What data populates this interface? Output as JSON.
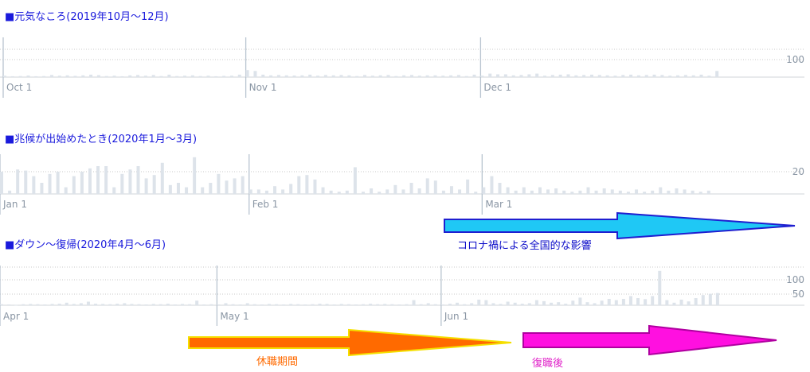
{
  "chart_data": [
    {
      "type": "bar",
      "title": "■元気なころ(2019年10月～12月)",
      "month_labels": [
        "Oct 1",
        "Nov 1",
        "Dec 1"
      ],
      "month_start_index": [
        0,
        31,
        61
      ],
      "y_tick_labels": [
        "100"
      ],
      "y_ticks": [
        100
      ],
      "ylim": [
        0,
        200
      ],
      "gridlines": [
        100,
        150
      ],
      "values": [
        8,
        5,
        6,
        9,
        5,
        6,
        12,
        8,
        10,
        7,
        10,
        14,
        11,
        6,
        8,
        5,
        10,
        12,
        8,
        12,
        6,
        14,
        6,
        8,
        10,
        6,
        8,
        5,
        7,
        8,
        14,
        40,
        35,
        14,
        10,
        12,
        10,
        9,
        10,
        14,
        8,
        12,
        10,
        12,
        10,
        6,
        12,
        8,
        10,
        12,
        6,
        10,
        12,
        8,
        10,
        10,
        8,
        10,
        12,
        6,
        14,
        8,
        20,
        16,
        16,
        10,
        12,
        16,
        20,
        8,
        12,
        14,
        16,
        10,
        12,
        14,
        12,
        10,
        8,
        12,
        14,
        10,
        12,
        14,
        12,
        8,
        10,
        12,
        10,
        14,
        8,
        35,
        0
      ]
    },
    {
      "type": "bar",
      "title": "■兆候が出始めたとき(2020年1月～3月)",
      "month_labels": [
        "Jan 1",
        "Feb 1",
        "Mar 1"
      ],
      "month_start_index": [
        0,
        31,
        60
      ],
      "y_tick_labels": [
        "20"
      ],
      "y_ticks": [
        20
      ],
      "ylim": [
        0,
        50
      ],
      "gridlines": [
        20
      ],
      "values": [
        20,
        3,
        22,
        21,
        16,
        10,
        18,
        20,
        6,
        16,
        20,
        23,
        25,
        25,
        6,
        18,
        22,
        25,
        14,
        17,
        28,
        8,
        10,
        6,
        33,
        6,
        10,
        18,
        12,
        14,
        16,
        4,
        4,
        3,
        7,
        4,
        9,
        16,
        17,
        13,
        6,
        3,
        2,
        3,
        24,
        2,
        5,
        2,
        4,
        8,
        4,
        10,
        5,
        14,
        12,
        3,
        7,
        4,
        13,
        2,
        6,
        16,
        10,
        6,
        3,
        6,
        3,
        6,
        4,
        5,
        3,
        2,
        3,
        6,
        3,
        5,
        4,
        3,
        2,
        4,
        2,
        3,
        6,
        3,
        5,
        4,
        3,
        2,
        3,
        0,
        0
      ]
    },
    {
      "type": "bar",
      "title": "■ダウン～復帰(2020年4月～6月)",
      "month_labels": [
        "Apr 1",
        "May 1",
        "Jun 1"
      ],
      "month_start_index": [
        0,
        30,
        61
      ],
      "y_tick_labels": [
        "100",
        "50"
      ],
      "y_ticks": [
        100,
        50
      ],
      "ylim": [
        0,
        150
      ],
      "gridlines": [
        150,
        100,
        50
      ],
      "values": [
        4,
        3,
        2,
        4,
        5,
        4,
        3,
        5,
        6,
        10,
        5,
        8,
        14,
        6,
        5,
        4,
        6,
        8,
        5,
        4,
        3,
        5,
        4,
        6,
        3,
        5,
        4,
        18,
        3,
        4,
        3,
        8,
        4,
        3,
        8,
        4,
        3,
        5,
        4,
        3,
        5,
        4,
        3,
        4,
        6,
        5,
        3,
        5,
        4,
        3,
        4,
        6,
        4,
        5,
        4,
        3,
        4,
        20,
        4,
        8,
        4,
        3,
        6,
        10,
        4,
        8,
        22,
        20,
        8,
        5,
        14,
        10,
        6,
        8,
        20,
        16,
        10,
        12,
        6,
        18,
        30,
        12,
        8,
        18,
        25,
        20,
        25,
        36,
        28,
        24,
        36,
        135,
        20,
        10,
        22,
        15,
        28,
        40,
        45,
        48,
        0
      ]
    }
  ],
  "arrows": [
    {
      "label": "コロナ禍による全国的な影響",
      "label_color": "#0a0ac8",
      "fill": "#1fc8f5",
      "stroke": "#1f1fd0"
    },
    {
      "label": "休職期間",
      "label_color": "#ff6a00",
      "fill": "#ff6a00",
      "stroke": "#f5e000"
    },
    {
      "label": "復職後",
      "label_color": "#e020c8",
      "fill": "#ff10e0",
      "stroke": "#b000a0"
    }
  ]
}
